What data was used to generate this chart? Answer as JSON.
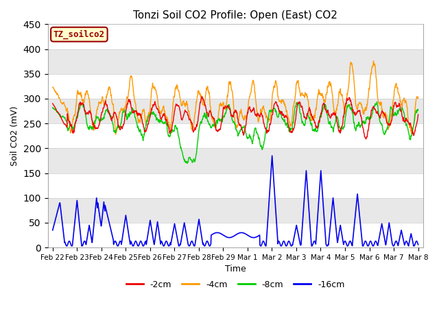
{
  "title": "Tonzi Soil CO2 Profile: Open (East) CO2",
  "ylabel": "Soil CO2 (mV)",
  "xlabel": "Time",
  "ylim": [
    0,
    450
  ],
  "background_color": "#ffffff",
  "plot_bg_color": "#ffffff",
  "band_color_light": "#ffffff",
  "band_color_dark": "#e8e8e8",
  "legend_box_label": "TZ_soilco2",
  "legend_box_bg": "#ffffcc",
  "legend_box_edge": "#990000",
  "x_tick_labels": [
    "Feb 22",
    "Feb 23",
    "Feb 24",
    "Feb 25",
    "Feb 26",
    "Feb 27",
    "Feb 28",
    "Feb 29",
    "Mar 1",
    "Mar 2",
    "Mar 3",
    "Mar 4",
    "Mar 5",
    "Mar 6",
    "Mar 7",
    "Mar 8"
  ],
  "series": {
    "m2cm": {
      "label": "-2cm",
      "color": "#ee0000"
    },
    "m4cm": {
      "label": "-4cm",
      "color": "#ff9900"
    },
    "m8cm": {
      "label": "-8cm",
      "color": "#00cc00"
    },
    "m16cm": {
      "label": "-16cm",
      "color": "#0000ee"
    }
  }
}
